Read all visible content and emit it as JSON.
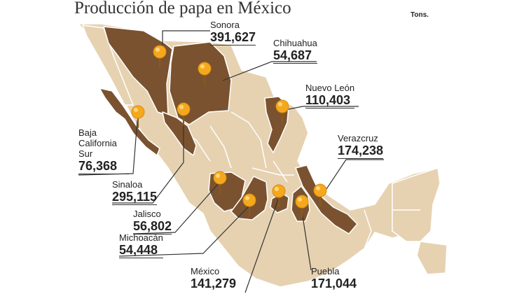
{
  "title": "Producción de papa en México",
  "units": "Tons.",
  "colors": {
    "producer_state": "#7a5230",
    "other_state": "#e6d2b1",
    "border": "#ffffff",
    "pin": "#f6a81d",
    "leader": "#333333"
  },
  "states": [
    {
      "name": "Sonora",
      "value": "391,627"
    },
    {
      "name": "Chihuahua",
      "value": "54,687"
    },
    {
      "name": "Nuevo León",
      "value": "110,403"
    },
    {
      "name": "Verazcruz",
      "value": "174,238"
    },
    {
      "name": "Baja California Sur",
      "value": "76,368"
    },
    {
      "name": "Sinaloa",
      "value": "295,115"
    },
    {
      "name": "Jalisco",
      "value": "56,802"
    },
    {
      "name": "Michoacán",
      "value": "54,448"
    },
    {
      "name": "México",
      "value": "141,279"
    },
    {
      "name": "Puebla",
      "value": "171,044"
    }
  ]
}
